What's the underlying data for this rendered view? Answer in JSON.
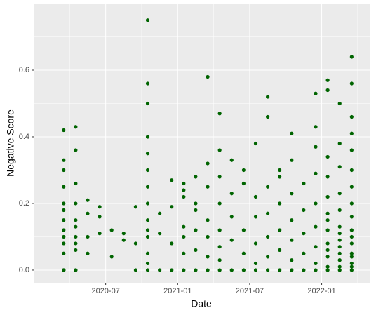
{
  "chart_data": {
    "type": "scatter",
    "x_label": "Date",
    "y_label": "Negative Score",
    "color": "#006400",
    "grid": true,
    "xlim": [
      "2020-01",
      "2022-05"
    ],
    "xticks": [
      "2020-07",
      "2021-01",
      "2021-07",
      "2022-01"
    ],
    "ylim": [
      -0.038,
      0.8
    ],
    "yticks": [
      {
        "value": 0,
        "label": "0.0"
      },
      0.2,
      0.4,
      0.6
    ],
    "x": [
      "2020-03",
      "2020-03",
      "2020-03",
      "2020-03",
      "2020-03",
      "2020-03",
      "2020-03",
      "2020-03",
      "2020-03",
      "2020-03",
      "2020-03",
      "2020-03",
      "2020-03",
      "2020-03",
      "2020-04",
      "2020-04",
      "2020-04",
      "2020-04",
      "2020-04",
      "2020-04",
      "2020-04",
      "2020-04",
      "2020-04",
      "2020-04",
      "2020-04",
      "2020-05",
      "2020-05",
      "2020-05",
      "2020-05",
      "2020-06",
      "2020-06",
      "2020-06",
      "2020-07",
      "2020-07",
      "2020-08",
      "2020-08",
      "2020-09",
      "2020-09",
      "2020-09",
      "2020-10",
      "2020-10",
      "2020-10",
      "2020-10",
      "2020-10",
      "2020-10",
      "2020-10",
      "2020-10",
      "2020-10",
      "2020-10",
      "2020-10",
      "2020-10",
      "2020-10",
      "2020-10",
      "2020-11",
      "2020-11",
      "2020-11",
      "2020-12",
      "2020-12",
      "2020-12",
      "2020-12",
      "2021-01",
      "2021-01",
      "2021-01",
      "2021-01",
      "2021-01",
      "2021-01",
      "2021-01",
      "2021-02",
      "2021-02",
      "2021-02",
      "2021-02",
      "2021-02",
      "2021-02",
      "2021-03",
      "2021-03",
      "2021-03",
      "2021-03",
      "2021-03",
      "2021-03",
      "2021-03",
      "2021-04",
      "2021-04",
      "2021-04",
      "2021-04",
      "2021-04",
      "2021-04",
      "2021-04",
      "2021-04",
      "2021-05",
      "2021-05",
      "2021-05",
      "2021-05",
      "2021-05",
      "2021-06",
      "2021-06",
      "2021-06",
      "2021-06",
      "2021-06",
      "2021-07",
      "2021-07",
      "2021-07",
      "2021-07",
      "2021-07",
      "2021-07",
      "2021-08",
      "2021-08",
      "2021-08",
      "2021-08",
      "2021-08",
      "2021-08",
      "2021-08",
      "2021-09",
      "2021-09",
      "2021-09",
      "2021-09",
      "2021-09",
      "2021-09",
      "2021-10",
      "2021-10",
      "2021-10",
      "2021-10",
      "2021-10",
      "2021-10",
      "2021-10",
      "2021-11",
      "2021-11",
      "2021-11",
      "2021-11",
      "2021-11",
      "2021-12",
      "2021-12",
      "2021-12",
      "2021-12",
      "2021-12",
      "2021-12",
      "2021-12",
      "2021-12",
      "2021-12",
      "2022-01",
      "2022-01",
      "2022-01",
      "2022-01",
      "2022-01",
      "2022-01",
      "2022-01",
      "2022-01",
      "2022-01",
      "2022-01",
      "2022-01",
      "2022-01",
      "2022-01",
      "2022-02",
      "2022-02",
      "2022-02",
      "2022-02",
      "2022-02",
      "2022-02",
      "2022-02",
      "2022-02",
      "2022-02",
      "2022-02",
      "2022-02",
      "2022-02",
      "2022-02",
      "2022-02",
      "2022-03",
      "2022-03",
      "2022-03",
      "2022-03",
      "2022-03",
      "2022-03",
      "2022-03",
      "2022-03",
      "2022-03",
      "2022-03",
      "2022-03",
      "2022-03",
      "2022-03",
      "2022-03",
      "2022-03",
      "2022-03",
      "2022-03"
    ],
    "values": [
      0,
      0,
      0,
      0.1,
      0.15,
      0.2,
      0.25,
      0.33,
      0.42,
      0.05,
      0.08,
      0.12,
      0.18,
      0.3,
      0,
      0,
      0.08,
      0.1,
      0.13,
      0.2,
      0.26,
      0.36,
      0.43,
      0.06,
      0.15,
      0.05,
      0.1,
      0.17,
      0.21,
      0.11,
      0.16,
      0.19,
      0.04,
      0.12,
      0.09,
      0.11,
      0,
      0.08,
      0.19,
      0,
      0.05,
      0.1,
      0.15,
      0.2,
      0.25,
      0.3,
      0.35,
      0.4,
      0.5,
      0.56,
      0.75,
      0.02,
      0.12,
      0,
      0.11,
      0.17,
      0,
      0.08,
      0.19,
      0.27,
      0,
      0.05,
      0.1,
      0.13,
      0.22,
      0.26,
      0.24,
      0,
      0.06,
      0.12,
      0.18,
      0.28,
      0.2,
      0,
      0.04,
      0.15,
      0.25,
      0.32,
      0.58,
      0.1,
      0,
      0.07,
      0.12,
      0.2,
      0.28,
      0.36,
      0.47,
      0.03,
      0,
      0.09,
      0.16,
      0.23,
      0.33,
      0,
      0.05,
      0.12,
      0.26,
      0.3,
      0,
      0.02,
      0.08,
      0.16,
      0.22,
      0.38,
      0,
      0.04,
      0.1,
      0.17,
      0.25,
      0.46,
      0.52,
      0,
      0.06,
      0.12,
      0.2,
      0.3,
      0.28,
      0,
      0.03,
      0.09,
      0.15,
      0.23,
      0.33,
      0.41,
      0,
      0.05,
      0.11,
      0.18,
      0.26,
      0,
      0.02,
      0.07,
      0.13,
      0.2,
      0.29,
      0.37,
      0.53,
      0.43,
      0,
      0.01,
      0.04,
      0.08,
      0.12,
      0.17,
      0.22,
      0.28,
      0.34,
      0.57,
      0.54,
      0.06,
      0.15,
      0,
      0.01,
      0.03,
      0.05,
      0.09,
      0.13,
      0.18,
      0.23,
      0.31,
      0.38,
      0.5,
      0.03,
      0.07,
      0.11,
      0,
      0.01,
      0.02,
      0.05,
      0.08,
      0.12,
      0.16,
      0.2,
      0.25,
      0.3,
      0.36,
      0.41,
      0.46,
      0.56,
      0.64,
      0.04,
      0.1
    ]
  }
}
